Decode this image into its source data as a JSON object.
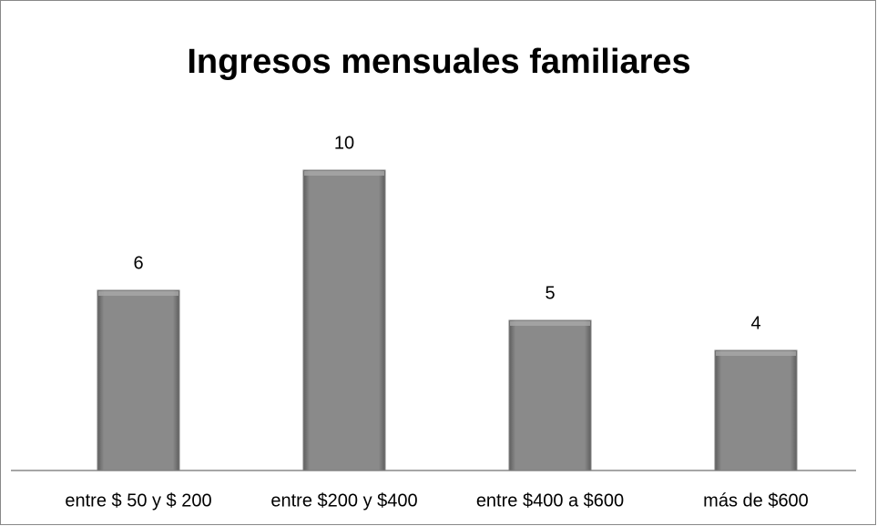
{
  "chart_data": {
    "type": "bar",
    "title": "Ingresos mensuales familiares",
    "categories": [
      "entre $ 50 y $ 200",
      "entre $200 y $400",
      "entre $400 a $600",
      "más de $600"
    ],
    "values": [
      6,
      10,
      5,
      4
    ],
    "color": "#808080",
    "ylim": [
      0,
      12
    ]
  }
}
